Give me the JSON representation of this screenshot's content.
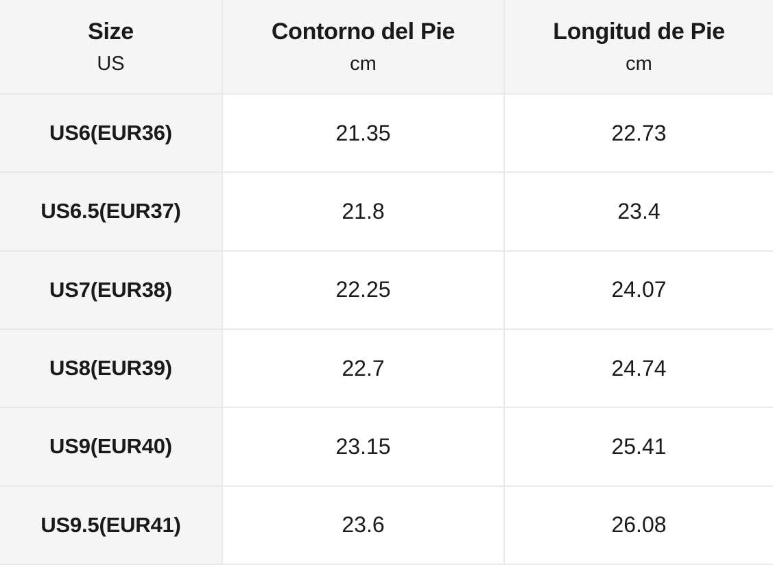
{
  "colors": {
    "shaded_bg": "#f5f5f5",
    "cell_bg": "#ffffff",
    "divider": "#e9e9ea",
    "text": "#1a1a1c"
  },
  "table": {
    "header": {
      "size_title": "Size",
      "size_unit": "US",
      "contorno_title": "Contorno del Pie",
      "contorno_unit": "cm",
      "longitud_title": "Longitud de Pie",
      "longitud_unit": "cm"
    },
    "rows": [
      {
        "size": "US6(EUR36)",
        "contorno": "21.35",
        "longitud": "22.73"
      },
      {
        "size": "US6.5(EUR37)",
        "contorno": "21.8",
        "longitud": "23.4"
      },
      {
        "size": "US7(EUR38)",
        "contorno": "22.25",
        "longitud": "24.07"
      },
      {
        "size": "US8(EUR39)",
        "contorno": "22.7",
        "longitud": "24.74"
      },
      {
        "size": "US9(EUR40)",
        "contorno": "23.15",
        "longitud": "25.41"
      },
      {
        "size": "US9.5(EUR41)",
        "contorno": "23.6",
        "longitud": "26.08"
      }
    ]
  },
  "chart_data": {
    "type": "table",
    "columns": [
      "Size US",
      "Contorno del Pie (cm)",
      "Longitud de Pie (cm)"
    ],
    "rows": [
      [
        "US6(EUR36)",
        21.35,
        22.73
      ],
      [
        "US6.5(EUR37)",
        21.8,
        23.4
      ],
      [
        "US7(EUR38)",
        22.25,
        24.07
      ],
      [
        "US8(EUR39)",
        22.7,
        24.74
      ],
      [
        "US9(EUR40)",
        23.15,
        25.41
      ],
      [
        "US9.5(EUR41)",
        23.6,
        26.08
      ]
    ]
  }
}
